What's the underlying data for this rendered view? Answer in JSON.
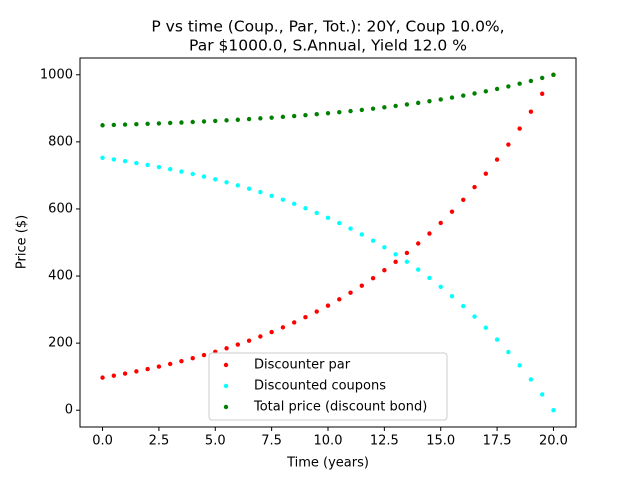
{
  "chart_data": {
    "type": "scatter",
    "title": [
      "P vs time (Coup., Par, Tot.): 20Y, Coup 10.0%,",
      "Par $1000.0, S.Annual, Yield 12.0 %"
    ],
    "x_label": "Time (years)",
    "y_label": "Price ($)",
    "x": [
      0,
      0.5,
      1,
      1.5,
      2,
      2.5,
      3,
      3.5,
      4,
      4.5,
      5,
      5.5,
      6,
      6.5,
      7,
      7.5,
      8,
      8.5,
      9,
      9.5,
      10,
      10.5,
      11,
      11.5,
      12,
      12.5,
      13,
      13.5,
      14,
      14.5,
      15,
      15.5,
      16,
      16.5,
      17,
      17.5,
      18,
      18.5,
      19,
      19.5,
      20
    ],
    "series": [
      {
        "name": "Discounter par",
        "color": "#ff0000",
        "values": [
          97.2,
          103.1,
          109.2,
          115.8,
          122.7,
          130.1,
          137.9,
          146.2,
          155.0,
          164.3,
          174.1,
          184.6,
          195.6,
          207.4,
          219.8,
          233.0,
          247.0,
          261.8,
          277.5,
          294.2,
          311.8,
          330.5,
          350.3,
          371.4,
          393.6,
          417.3,
          442.3,
          468.8,
          497.0,
          526.8,
          558.4,
          591.9,
          627.4,
          665.1,
          705.0,
          747.3,
          792.1,
          839.6,
          890.0,
          943.4,
          1000
        ]
      },
      {
        "name": "Discounted coupons",
        "color": "#00ffff",
        "values": [
          752.3,
          747.5,
          742.3,
          736.8,
          731.1,
          724.9,
          718.4,
          711.5,
          704.2,
          696.5,
          688.2,
          679.5,
          670.3,
          660.5,
          650.2,
          639.2,
          627.5,
          615.2,
          602.1,
          588.2,
          573.5,
          557.9,
          541.4,
          523.9,
          505.3,
          485.6,
          464.8,
          442.6,
          419.2,
          394.3,
          368.0,
          340.1,
          310.5,
          279.1,
          245.9,
          210.6,
          173.3,
          133.7,
          91.7,
          47.2,
          0
        ]
      },
      {
        "name": "Total price (discount bond)",
        "color": "#008000",
        "values": [
          849.5,
          850.5,
          851.5,
          852.6,
          853.8,
          855.0,
          856.3,
          857.7,
          859.2,
          860.7,
          862.4,
          864.1,
          865.9,
          867.9,
          870.0,
          872.2,
          874.5,
          877.0,
          879.6,
          882.4,
          885.3,
          888.4,
          891.7,
          895.2,
          898.9,
          902.9,
          907.1,
          911.5,
          916.2,
          921.1,
          926.4,
          932.0,
          937.9,
          944.2,
          950.8,
          957.9,
          965.3,
          973.3,
          981.7,
          990.6,
          1000
        ]
      }
    ],
    "xlim": [
      -1,
      21
    ],
    "ylim": [
      -50,
      1050
    ],
    "xticks": [
      {
        "value": 0,
        "label": "0.0"
      },
      {
        "value": 2.5,
        "label": "2.5"
      },
      {
        "value": 5,
        "label": "5.0"
      },
      {
        "value": 7.5,
        "label": "7.5"
      },
      {
        "value": 10,
        "label": "10.0"
      },
      {
        "value": 12.5,
        "label": "12.5"
      },
      {
        "value": 15,
        "label": "15.0"
      },
      {
        "value": 17.5,
        "label": "17.5"
      },
      {
        "value": 20,
        "label": "20.0"
      }
    ],
    "yticks": [
      0,
      200,
      400,
      600,
      800,
      1000
    ],
    "legend": "lower center"
  }
}
